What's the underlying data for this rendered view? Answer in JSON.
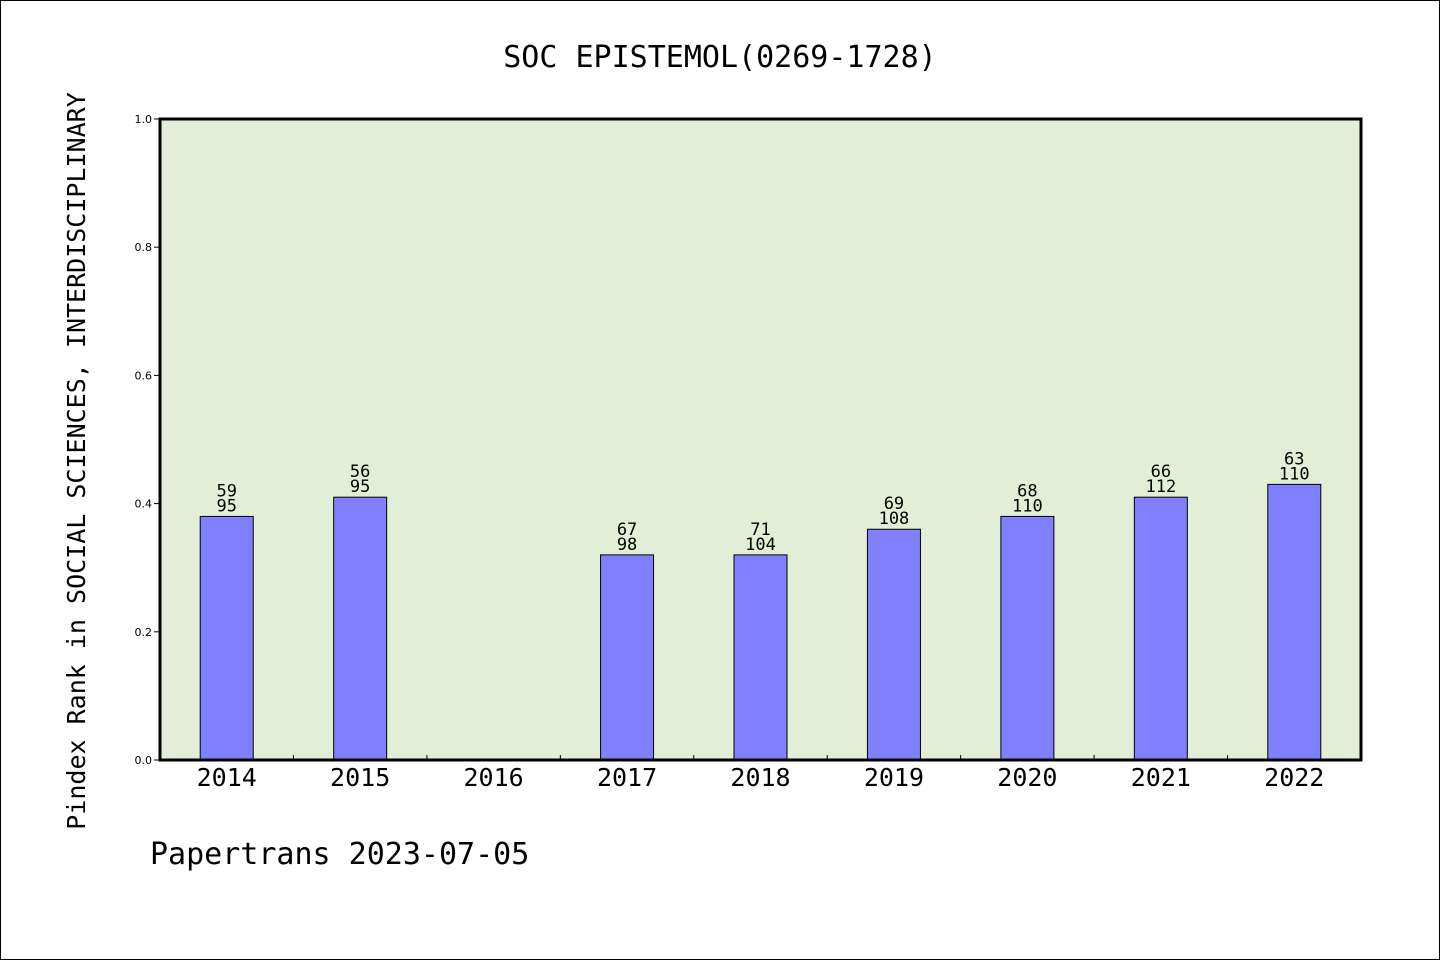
{
  "chart_data": {
    "type": "bar",
    "title": "SOC EPISTEMOL(0269-1728)",
    "xlabel": "",
    "ylabel": "Pindex Rank in SOCIAL SCIENCES, INTERDISCIPLINARY",
    "ylim": [
      0,
      1.0
    ],
    "yticks": [
      "0.0",
      "0.2",
      "0.4",
      "0.6",
      "0.8",
      "1.0"
    ],
    "grid": false,
    "legend": "none",
    "categories": [
      "2014",
      "2015",
      "2016",
      "2017",
      "2018",
      "2019",
      "2020",
      "2021",
      "2022"
    ],
    "values": [
      0.38,
      0.41,
      null,
      0.32,
      0.32,
      0.36,
      0.38,
      0.41,
      0.43
    ],
    "label_top": [
      "59",
      "56",
      "",
      "67",
      "71",
      "69",
      "68",
      "66",
      "63"
    ],
    "label_bottom": [
      "95",
      "95",
      "",
      "98",
      "104",
      "108",
      "110",
      "112",
      "110"
    ],
    "footer": "Papertrans 2023-07-05"
  },
  "colors": {
    "plot_background": "#e2efd6",
    "bar_fill": "#8080ff",
    "bar_stroke": "#000000",
    "axis": "#000000"
  }
}
